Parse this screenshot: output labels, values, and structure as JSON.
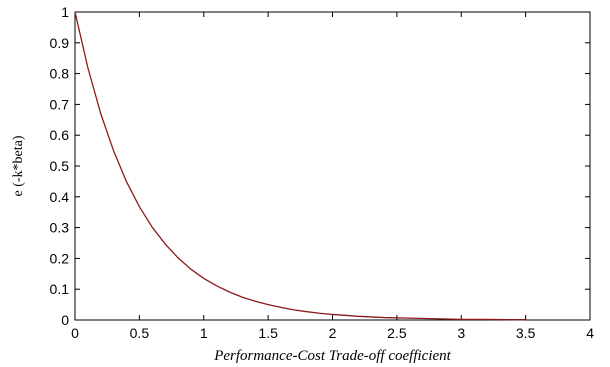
{
  "chart_data": {
    "type": "line",
    "title": "",
    "xlabel": "Performance-Cost Trade-off coefficient",
    "ylabel": "e (-k*beta)",
    "xlim": [
      0,
      4
    ],
    "ylim": [
      0,
      1
    ],
    "xticks": [
      "0",
      "0.5",
      "1",
      "1.5",
      "2",
      "2.5",
      "3",
      "3.5",
      "4"
    ],
    "yticks": [
      "0",
      "0.1",
      "0.2",
      "0.3",
      "0.4",
      "0.5",
      "0.6",
      "0.7",
      "0.8",
      "0.9",
      "1"
    ],
    "grid": false,
    "legend": "none",
    "series": [
      {
        "color": "#8b1a1a",
        "x": [
          0,
          0.1,
          0.2,
          0.3,
          0.4,
          0.5,
          0.6,
          0.7,
          0.8,
          0.9,
          1,
          1.1,
          1.2,
          1.3,
          1.4,
          1.5,
          1.6,
          1.7,
          1.8,
          1.9,
          2,
          2.2,
          2.4,
          2.6,
          2.8,
          3,
          3.2,
          3.4,
          3.5
        ],
        "y": [
          1,
          0.819,
          0.67,
          0.549,
          0.449,
          0.368,
          0.301,
          0.247,
          0.202,
          0.165,
          0.135,
          0.111,
          0.091,
          0.074,
          0.061,
          0.05,
          0.041,
          0.033,
          0.027,
          0.022,
          0.018,
          0.012,
          0.008,
          0.006,
          0.004,
          0.002,
          0.002,
          0.001,
          0.001
        ]
      }
    ]
  }
}
